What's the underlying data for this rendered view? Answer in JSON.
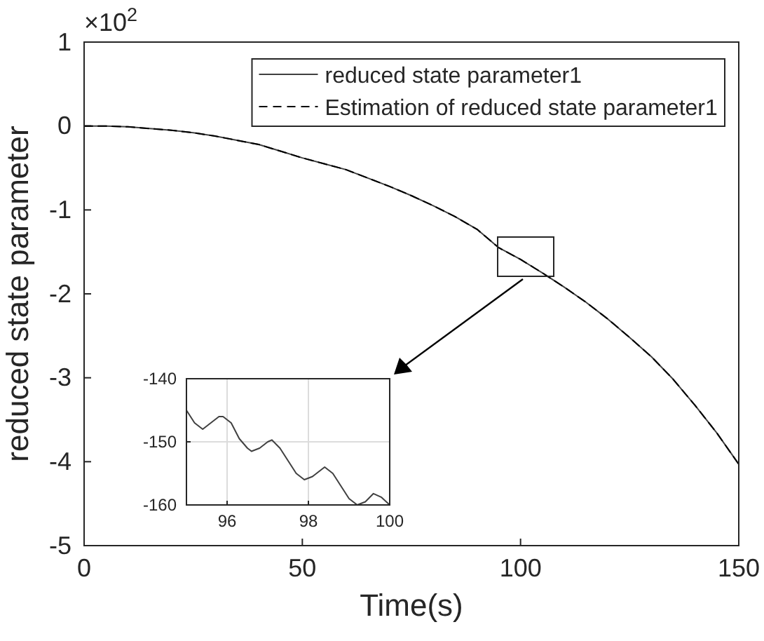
{
  "chart_data": [
    {
      "type": "line",
      "xlabel": "Time(s)",
      "ylabel": "reduced state parameter",
      "annotations": [
        "×10$^{2}$"
      ],
      "x": [
        0,
        5,
        10,
        15,
        20,
        25,
        30,
        35,
        40,
        45,
        50,
        55,
        60,
        65,
        70,
        75,
        80,
        85,
        90,
        95,
        100,
        105,
        110,
        115,
        120,
        125,
        130,
        135,
        140,
        145,
        150
      ],
      "series": [
        {
          "name": "reduced state parameter1",
          "color": "#404040",
          "line_style": "solid",
          "values": [
            0,
            0,
            -0.01,
            -0.03,
            -0.05,
            -0.08,
            -0.12,
            -0.17,
            -0.22,
            -0.3,
            -0.38,
            -0.45,
            -0.52,
            -0.62,
            -0.72,
            -0.83,
            -0.95,
            -1.08,
            -1.23,
            -1.45,
            -1.59,
            -1.75,
            -1.92,
            -2.1,
            -2.3,
            -2.52,
            -2.75,
            -3.02,
            -3.33,
            -3.66,
            -4.03
          ]
        },
        {
          "name": "Estimation of reduced state parameter1",
          "color": "#000000",
          "line_style": "dashed",
          "values": [
            0,
            0,
            -0.01,
            -0.03,
            -0.05,
            -0.08,
            -0.12,
            -0.17,
            -0.22,
            -0.3,
            -0.38,
            -0.45,
            -0.52,
            -0.62,
            -0.72,
            -0.83,
            -0.95,
            -1.08,
            -1.23,
            -1.45,
            -1.59,
            -1.75,
            -1.92,
            -2.1,
            -2.3,
            -2.52,
            -2.75,
            -3.02,
            -3.33,
            -3.66,
            -4.03
          ]
        }
      ],
      "xlim": [
        0,
        150
      ],
      "xticks": [
        0,
        50,
        100,
        150
      ],
      "ylim": [
        -5,
        1
      ],
      "yticks": [
        -5,
        -4,
        -3,
        -2,
        -1,
        0,
        1
      ],
      "legend": "top right",
      "grid": false
    },
    {
      "type": "line",
      "x": [
        95,
        95.2,
        95.4,
        95.6,
        95.8,
        95.9,
        96.1,
        96.3,
        96.5,
        96.6,
        96.8,
        97,
        97.1,
        97.3,
        97.5,
        97.7,
        97.9,
        98.1,
        98.3,
        98.4,
        98.6,
        98.8,
        99,
        99.2,
        99.4,
        99.6,
        99.8,
        100
      ],
      "series": [
        {
          "color": "#404040",
          "values": [
            -145,
            -147,
            -148,
            -147,
            -146,
            -146,
            -147,
            -149.5,
            -151,
            -151.5,
            -151,
            -150,
            -149.7,
            -151,
            -153,
            -155,
            -156,
            -155.5,
            -154.5,
            -154,
            -155,
            -157,
            -159,
            -160,
            -159.5,
            -158.2,
            -158.8,
            -160
          ]
        }
      ],
      "xlim": [
        95,
        100
      ],
      "xticks": [
        96,
        98,
        100
      ],
      "ylim": [
        -160,
        -140
      ],
      "yticks": [
        -160,
        -150,
        -140
      ],
      "grid": true
    }
  ]
}
